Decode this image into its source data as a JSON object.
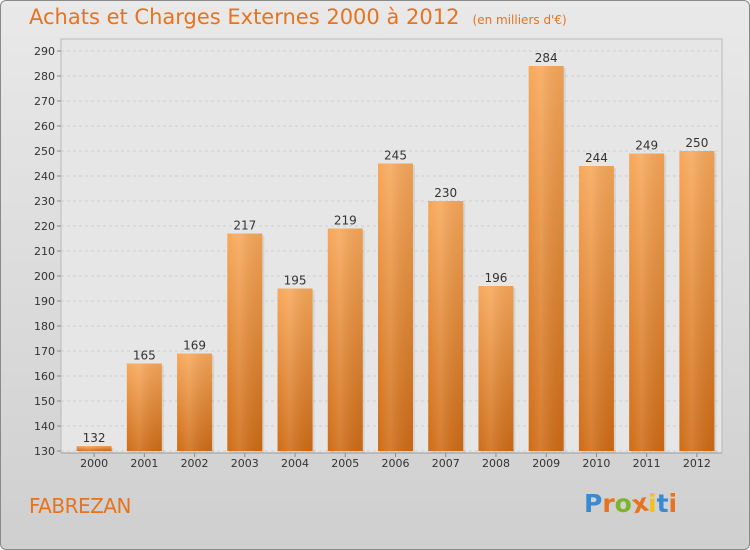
{
  "title": "Achats et Charges Externes 2000 à 2012",
  "subtitle": "(en milliers d'€)",
  "commune": "FABREZAN",
  "logo": {
    "letters": [
      "P",
      "r",
      "o",
      "x",
      "i",
      "t",
      "i"
    ],
    "colors": [
      "#3a8ad2",
      "#e8731e",
      "#7cb52c",
      "#e8731e",
      "#f2c21b",
      "#3a8ad2",
      "#e8731e"
    ]
  },
  "colors": {
    "accent": "#e8731e",
    "bar_top": "#f7a85a",
    "bar_bottom": "#cf6c16"
  },
  "chart_data": {
    "type": "bar",
    "categories": [
      "2000",
      "2001",
      "2002",
      "2003",
      "2004",
      "2005",
      "2006",
      "2007",
      "2008",
      "2009",
      "2010",
      "2011",
      "2012"
    ],
    "values": [
      132,
      165,
      169,
      217,
      195,
      219,
      245,
      230,
      196,
      284,
      244,
      249,
      250
    ],
    "ylim": [
      130,
      290
    ],
    "yticks": [
      130,
      140,
      150,
      160,
      170,
      180,
      190,
      200,
      210,
      220,
      230,
      240,
      250,
      260,
      270,
      280,
      290
    ],
    "grid": true,
    "xlabel": "",
    "ylabel": ""
  }
}
